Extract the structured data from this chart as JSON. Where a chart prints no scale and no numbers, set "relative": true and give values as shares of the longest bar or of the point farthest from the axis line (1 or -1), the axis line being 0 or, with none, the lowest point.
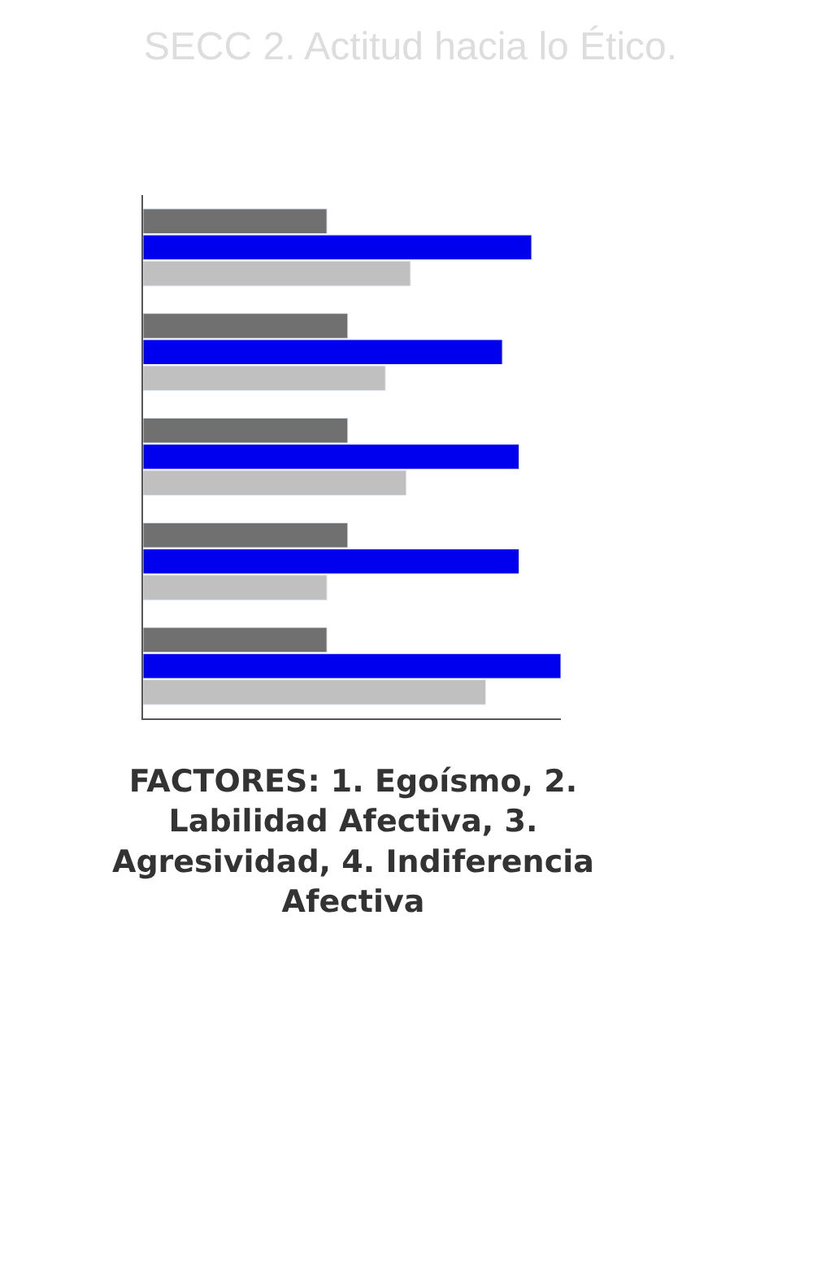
{
  "chart_data": {
    "type": "bar",
    "orientation": "horizontal",
    "relative": true,
    "title": "SECC 2. Actitud hacia lo Ético.",
    "categories": [
      null,
      null,
      null,
      null,
      null
    ],
    "series": [
      {
        "color": "#707070",
        "values": [
          0.44,
          0.49,
          0.49,
          0.49,
          0.44
        ]
      },
      {
        "color": "#0000ee",
        "values": [
          0.93,
          0.86,
          0.9,
          0.9,
          1
        ]
      },
      {
        "color": "#c0c0c0",
        "values": [
          0.64,
          0.58,
          0.63,
          0.44,
          0.82
        ]
      }
    ],
    "annotations": [
      "FACTORES: 1. Egoísmo, 2.\nLabilidad Afectiva, 3.\nAgresividad, 4. Indiferencia\nAfectiva"
    ]
  }
}
